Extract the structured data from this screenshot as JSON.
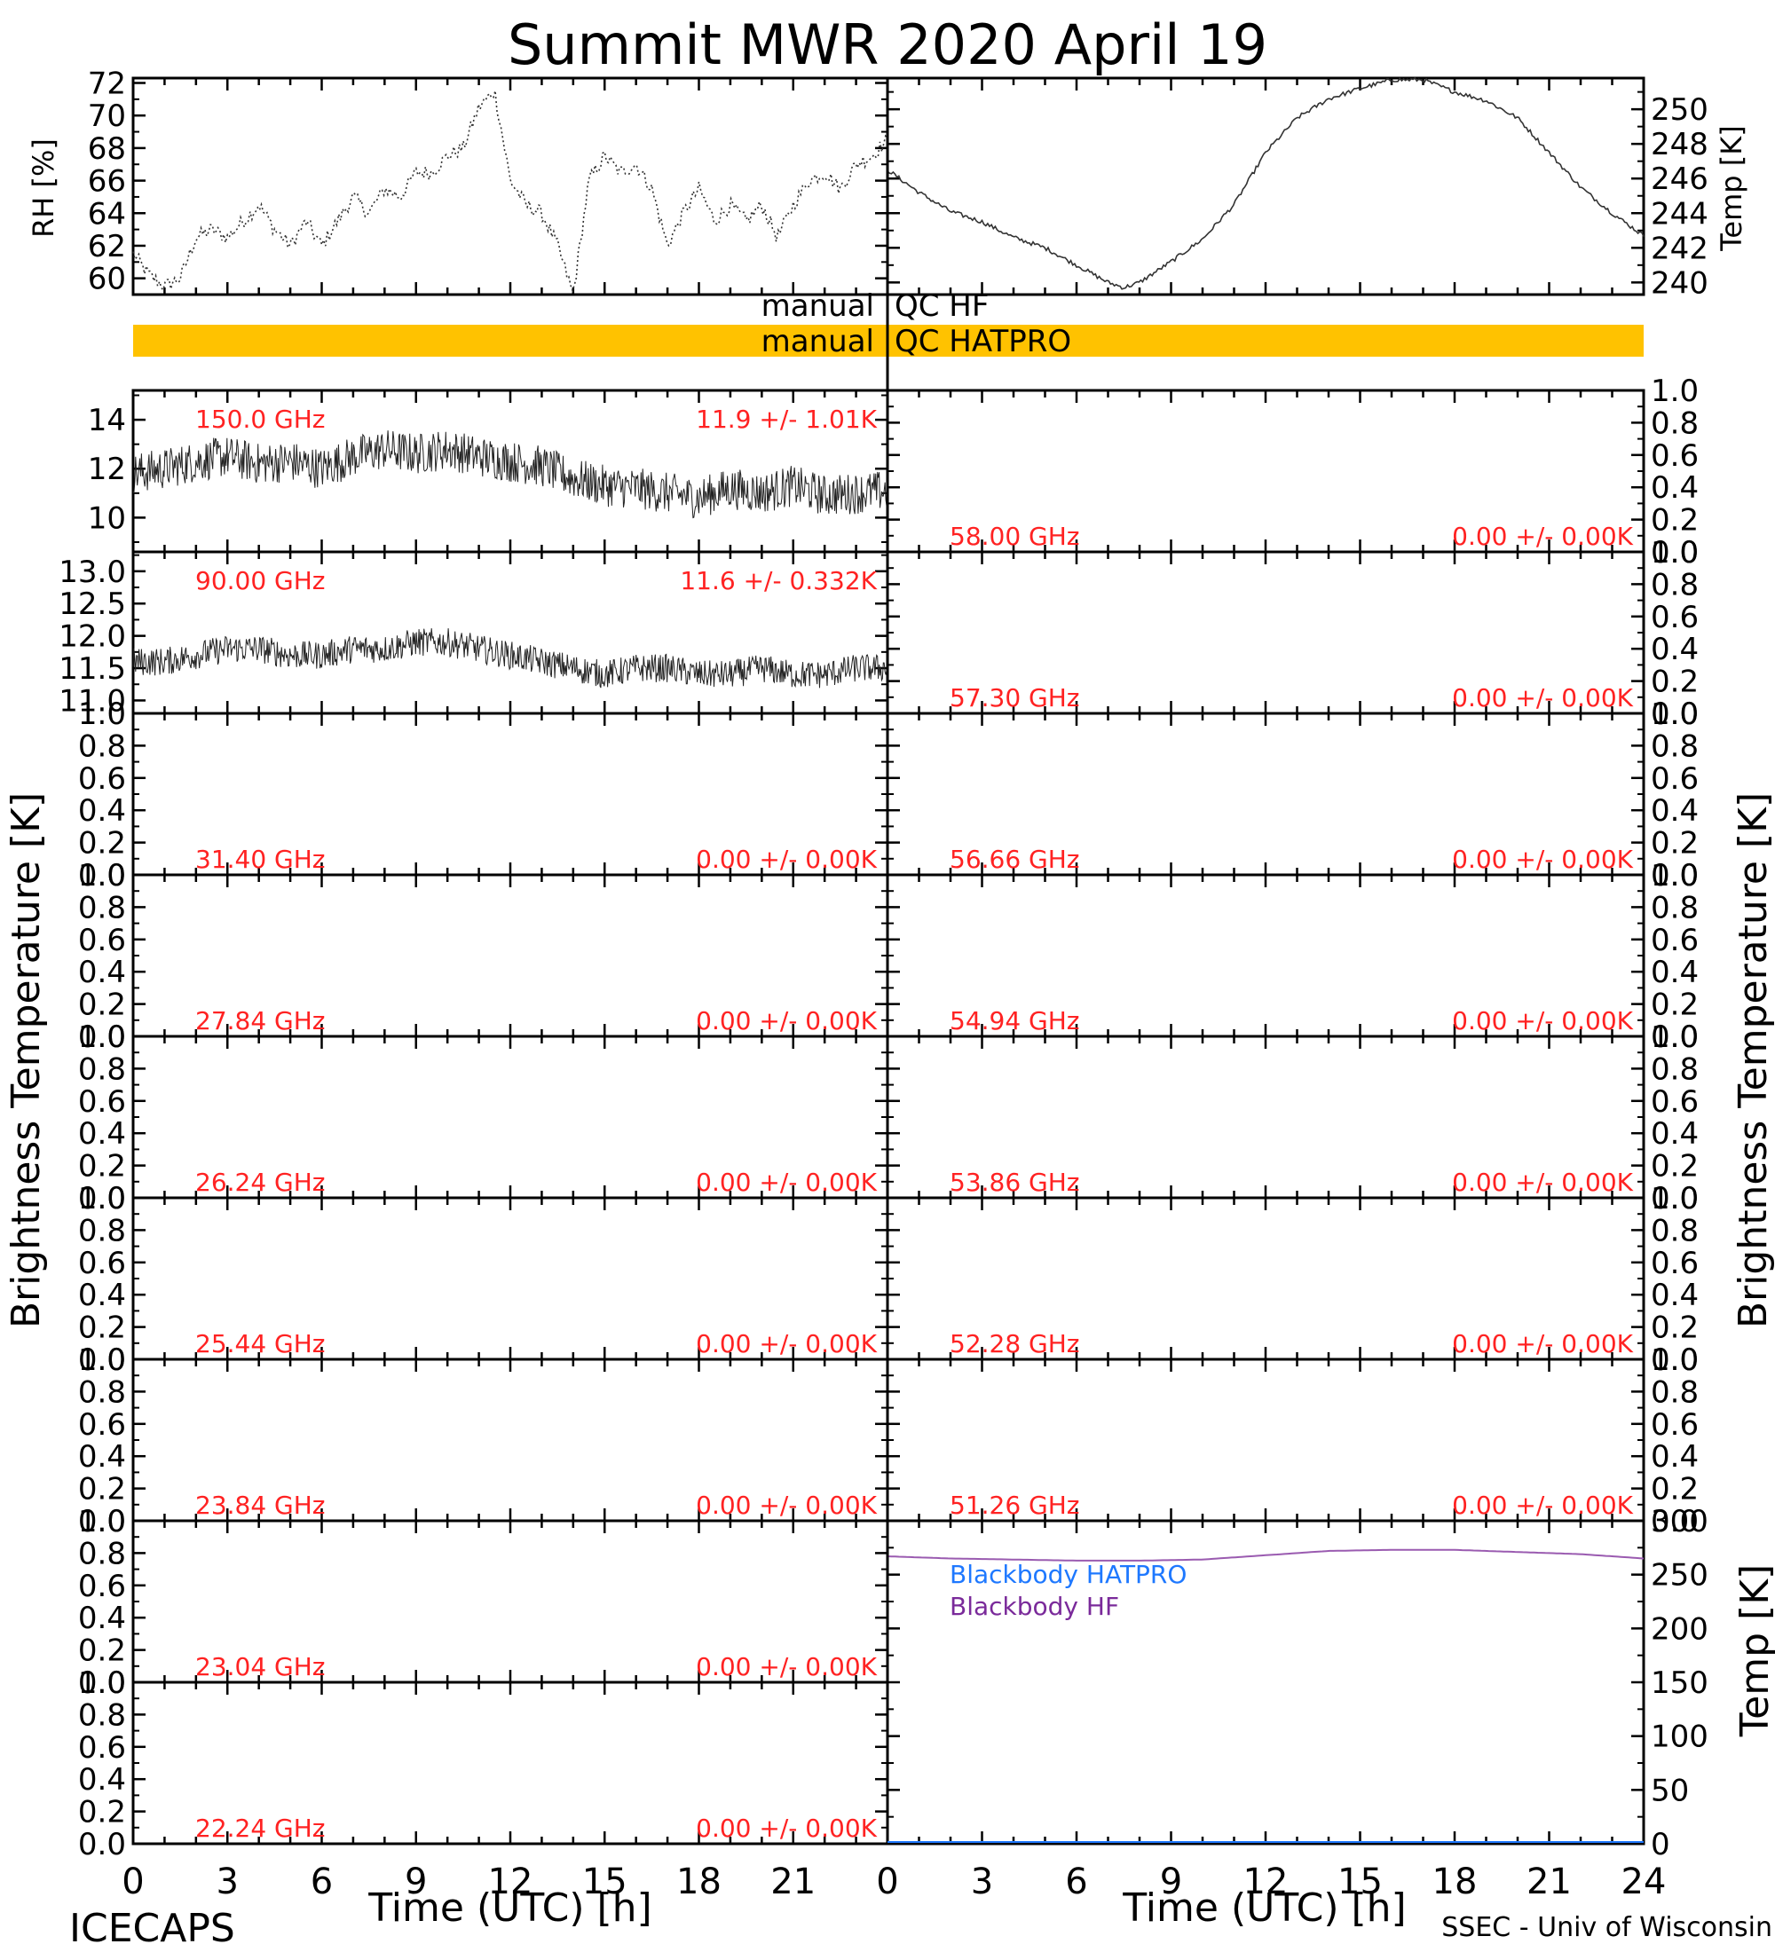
{
  "title": "Summit MWR 2020 April 19",
  "footer": {
    "left": "ICECAPS",
    "right": "SSEC - Univ of Wisconsin",
    "xlabel_left": "Time (UTC) [h]",
    "xlabel_right": "Time (UTC) [h]"
  },
  "side_labels": {
    "left_tb": "Brightness Temperature [K]",
    "right_tb": "Brightness Temperature [K]",
    "rh": "RH [%]",
    "temp_top": "Temp [K]",
    "temp_bb": "Temp [K]"
  },
  "qc": {
    "hf_prefix": "manual",
    "hf_label": "QC HF",
    "hatpro_prefix": "manual",
    "hatpro_label": "QC HATPRO",
    "hatpro_color": "#ffc200"
  },
  "colors": {
    "annotation": "#ff2222",
    "bb_hatpro": "#1e78ff",
    "bb_hf": "#7a2a9a",
    "bb_line": "#9a5bb0"
  },
  "chart_data": [
    {
      "type": "line",
      "id": "rh",
      "ylabel": "RH [%]",
      "xlim": [
        0,
        24
      ],
      "ylim": [
        59,
        72.3
      ],
      "yticks": [
        "60",
        "62",
        "64",
        "66",
        "68",
        "70",
        "72"
      ],
      "x": [
        0,
        0.5,
        1,
        1.5,
        2,
        2.5,
        3,
        3.5,
        4,
        4.5,
        5,
        5.5,
        6,
        6.5,
        7,
        7.5,
        8,
        8.5,
        9,
        9.5,
        10,
        10.5,
        11,
        11.5,
        12,
        12.5,
        13,
        13.5,
        14,
        14.5,
        15,
        15.5,
        16,
        16.5,
        17,
        17.5,
        18,
        18.5,
        19,
        19.5,
        20,
        20.5,
        21,
        21.5,
        22,
        22.5,
        23,
        23.5,
        24
      ],
      "values": [
        61.5,
        60.2,
        59.5,
        60.0,
        62.5,
        63.0,
        62.5,
        63.5,
        64.5,
        63.0,
        62.0,
        63.5,
        62.0,
        63.5,
        65.0,
        64.0,
        65.5,
        65.0,
        66.5,
        66.5,
        67.5,
        68.0,
        70.5,
        71.5,
        66.0,
        64.5,
        64.0,
        62.0,
        59.0,
        66.0,
        67.5,
        66.5,
        67.0,
        65.5,
        62.0,
        64.0,
        65.5,
        63.5,
        64.5,
        63.5,
        64.5,
        62.5,
        64.5,
        66.0,
        66.5,
        65.5,
        67.0,
        67.5,
        68.5
      ]
    },
    {
      "type": "line",
      "id": "temp",
      "ylabel": "Temp [K]",
      "xlim": [
        0,
        24
      ],
      "ylim": [
        239.3,
        251.8
      ],
      "yticks": [
        "240",
        "242",
        "244",
        "246",
        "248",
        "250"
      ],
      "x": [
        0,
        1,
        2,
        3,
        4,
        5,
        6,
        7,
        7.5,
        8,
        9,
        10,
        11,
        12,
        13,
        14,
        15,
        16,
        17,
        18,
        19,
        20,
        21,
        22,
        23,
        24
      ],
      "values": [
        246.5,
        245.2,
        244.1,
        243.5,
        242.6,
        242.0,
        241.0,
        240.0,
        239.7,
        240.0,
        241.2,
        242.5,
        244.5,
        247.5,
        249.5,
        250.6,
        251.2,
        251.7,
        251.7,
        251.0,
        250.5,
        249.5,
        247.5,
        245.5,
        244.0,
        242.7
      ]
    },
    {
      "type": "line",
      "id": "ch150",
      "annotation_left": "150.0 GHz",
      "annotation_right": "11.9 +/- 1.01K",
      "xlim": [
        0,
        24
      ],
      "ylim": [
        8.6,
        15.2
      ],
      "yticks": [
        "10",
        "12",
        "14"
      ],
      "x": [
        0,
        1,
        2,
        3,
        4,
        5,
        6,
        7,
        8,
        9,
        10,
        11,
        12,
        13,
        14,
        15,
        16,
        17,
        18,
        19,
        20,
        21,
        22,
        23,
        24
      ],
      "values": [
        11.8,
        12.0,
        12.3,
        12.5,
        12.2,
        12.3,
        12.0,
        12.5,
        12.8,
        12.6,
        12.8,
        12.5,
        12.3,
        12.1,
        11.6,
        11.3,
        11.2,
        11.0,
        10.8,
        11.2,
        11.0,
        11.3,
        10.9,
        11.0,
        11.1
      ],
      "noise": 0.85
    },
    {
      "type": "line",
      "id": "ch90",
      "annotation_left": "90.00 GHz",
      "annotation_right": "11.6 +/- 0.332K",
      "xlim": [
        0,
        24
      ],
      "ylim": [
        10.8,
        13.3
      ],
      "yticks": [
        "11.0",
        "11.5",
        "12.0",
        "12.5",
        "13.0"
      ],
      "x": [
        0,
        1,
        2,
        3,
        4,
        5,
        6,
        7,
        8,
        9,
        10,
        11,
        12,
        13,
        14,
        15,
        16,
        17,
        18,
        19,
        20,
        21,
        22,
        23,
        24
      ],
      "values": [
        11.6,
        11.6,
        11.7,
        11.8,
        11.8,
        11.7,
        11.7,
        11.8,
        11.8,
        11.9,
        11.9,
        11.8,
        11.7,
        11.6,
        11.5,
        11.4,
        11.5,
        11.5,
        11.4,
        11.4,
        11.5,
        11.4,
        11.4,
        11.5,
        11.5
      ],
      "noise": 0.22
    },
    {
      "type": "line",
      "id": "ch31",
      "annotation_left": "31.40 GHz",
      "annotation_right": "0.00 +/- 0.00K",
      "xlim": [
        0,
        24
      ],
      "ylim": [
        0,
        1
      ],
      "yticks": [
        "0.0",
        "0.2",
        "0.4",
        "0.6",
        "0.8",
        "1.0"
      ]
    },
    {
      "type": "line",
      "id": "ch27",
      "annotation_left": "27.84 GHz",
      "annotation_right": "0.00 +/- 0.00K",
      "xlim": [
        0,
        24
      ],
      "ylim": [
        0,
        1
      ],
      "yticks": [
        "0.0",
        "0.2",
        "0.4",
        "0.6",
        "0.8",
        "1.0"
      ]
    },
    {
      "type": "line",
      "id": "ch26",
      "annotation_left": "26.24 GHz",
      "annotation_right": "0.00 +/- 0.00K",
      "xlim": [
        0,
        24
      ],
      "ylim": [
        0,
        1
      ],
      "yticks": [
        "0.0",
        "0.2",
        "0.4",
        "0.6",
        "0.8",
        "1.0"
      ]
    },
    {
      "type": "line",
      "id": "ch25",
      "annotation_left": "25.44 GHz",
      "annotation_right": "0.00 +/- 0.00K",
      "xlim": [
        0,
        24
      ],
      "ylim": [
        0,
        1
      ],
      "yticks": [
        "0.0",
        "0.2",
        "0.4",
        "0.6",
        "0.8",
        "1.0"
      ]
    },
    {
      "type": "line",
      "id": "ch23b",
      "annotation_left": "23.84 GHz",
      "annotation_right": "0.00 +/- 0.00K",
      "xlim": [
        0,
        24
      ],
      "ylim": [
        0,
        1
      ],
      "yticks": [
        "0.0",
        "0.2",
        "0.4",
        "0.6",
        "0.8",
        "1.0"
      ]
    },
    {
      "type": "line",
      "id": "ch23a",
      "annotation_left": "23.04 GHz",
      "annotation_right": "0.00 +/- 0.00K",
      "xlim": [
        0,
        24
      ],
      "ylim": [
        0,
        1
      ],
      "yticks": [
        "0.0",
        "0.2",
        "0.4",
        "0.6",
        "0.8",
        "1.0"
      ]
    },
    {
      "type": "line",
      "id": "ch22",
      "annotation_left": "22.24 GHz",
      "annotation_right": "0.00 +/- 0.00K",
      "xlim": [
        0,
        24
      ],
      "ylim": [
        0,
        1
      ],
      "yticks": [
        "0.0",
        "0.2",
        "0.4",
        "0.6",
        "0.8",
        "1.0"
      ]
    },
    {
      "type": "line",
      "id": "ch58",
      "annotation_left": "58.00 GHz",
      "annotation_right": "0.00 +/- 0.00K",
      "xlim": [
        0,
        24
      ],
      "ylim": [
        0,
        1
      ],
      "yticks": [
        "0.0",
        "0.2",
        "0.4",
        "0.6",
        "0.8",
        "1.0"
      ]
    },
    {
      "type": "line",
      "id": "ch57",
      "annotation_left": "57.30 GHz",
      "annotation_right": "0.00 +/- 0.00K",
      "xlim": [
        0,
        24
      ],
      "ylim": [
        0,
        1
      ],
      "yticks": [
        "0.0",
        "0.2",
        "0.4",
        "0.6",
        "0.8",
        "1.0"
      ]
    },
    {
      "type": "line",
      "id": "ch56",
      "annotation_left": "56.66 GHz",
      "annotation_right": "0.00 +/- 0.00K",
      "xlim": [
        0,
        24
      ],
      "ylim": [
        0,
        1
      ],
      "yticks": [
        "0.0",
        "0.2",
        "0.4",
        "0.6",
        "0.8",
        "1.0"
      ]
    },
    {
      "type": "line",
      "id": "ch54",
      "annotation_left": "54.94 GHz",
      "annotation_right": "0.00 +/- 0.00K",
      "xlim": [
        0,
        24
      ],
      "ylim": [
        0,
        1
      ],
      "yticks": [
        "0.0",
        "0.2",
        "0.4",
        "0.6",
        "0.8",
        "1.0"
      ]
    },
    {
      "type": "line",
      "id": "ch53",
      "annotation_left": "53.86 GHz",
      "annotation_right": "0.00 +/- 0.00K",
      "xlim": [
        0,
        24
      ],
      "ylim": [
        0,
        1
      ],
      "yticks": [
        "0.0",
        "0.2",
        "0.4",
        "0.6",
        "0.8",
        "1.0"
      ]
    },
    {
      "type": "line",
      "id": "ch52",
      "annotation_left": "52.28 GHz",
      "annotation_right": "0.00 +/- 0.00K",
      "xlim": [
        0,
        24
      ],
      "ylim": [
        0,
        1
      ],
      "yticks": [
        "0.0",
        "0.2",
        "0.4",
        "0.6",
        "0.8",
        "1.0"
      ]
    },
    {
      "type": "line",
      "id": "ch51",
      "annotation_left": "51.26 GHz",
      "annotation_right": "0.00 +/- 0.00K",
      "xlim": [
        0,
        24
      ],
      "ylim": [
        0,
        1
      ],
      "yticks": [
        "0.0",
        "0.2",
        "0.4",
        "0.6",
        "0.8",
        "1.0"
      ]
    },
    {
      "type": "line",
      "id": "blackbody",
      "ylabel": "Temp [K]",
      "xlim": [
        0,
        24
      ],
      "ylim": [
        0,
        300
      ],
      "yticks": [
        "0",
        "50",
        "100",
        "150",
        "200",
        "250",
        "300"
      ],
      "series": [
        {
          "name": "Blackbody HATPRO",
          "x": [
            0,
            24
          ],
          "values": [
            0,
            0
          ]
        },
        {
          "name": "Blackbody HF",
          "x": [
            0,
            2,
            4,
            6,
            8,
            10,
            12,
            14,
            16,
            18,
            20,
            22,
            24
          ],
          "values": [
            267,
            265,
            264,
            263,
            263,
            264,
            268,
            272,
            273,
            273,
            271,
            269,
            265
          ]
        }
      ]
    }
  ],
  "xticks": [
    "0",
    "3",
    "6",
    "9",
    "12",
    "15",
    "18",
    "21",
    "24"
  ],
  "xticks_left": [
    "0",
    "3",
    "6",
    "9",
    "12",
    "15",
    "18",
    "21"
  ]
}
